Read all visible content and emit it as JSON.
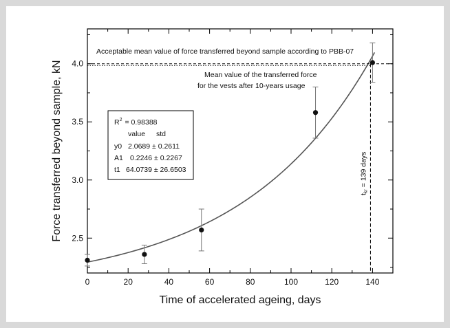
{
  "chart_data": {
    "type": "scatter",
    "xlabel": "Time of accelerated ageing, days",
    "ylabel": "Force transferred beyond sample, kN",
    "xlim": [
      0,
      150
    ],
    "ylim": [
      2.2,
      4.3
    ],
    "x_ticks": [
      "0",
      "20",
      "40",
      "60",
      "80",
      "100",
      "120",
      "140"
    ],
    "y_ticks": [
      "2.5",
      "3.0",
      "3.5",
      "4.0"
    ],
    "points": [
      {
        "x": 0,
        "y": 2.31,
        "err": 0.05
      },
      {
        "x": 28,
        "y": 2.36,
        "err": 0.08
      },
      {
        "x": 56,
        "y": 2.57,
        "err": 0.18
      },
      {
        "x": 112,
        "y": 3.58,
        "err": 0.22
      },
      {
        "x": 140,
        "y": 4.01,
        "err": 0.17
      }
    ],
    "fit": {
      "y0": 2.0689,
      "A1": 0.2246,
      "t1": 64.0739
    },
    "acceptable_line": {
      "y": 4.0,
      "label": "Acceptable mean value of force transferred beyond sample according to PBB-07"
    },
    "mean_line": {
      "y": 3.985,
      "label_line1": "Mean value of the transferred force",
      "label_line2": "for the vests after 10-years usage"
    },
    "vline": {
      "x": 139,
      "label": "= 139 days",
      "label_prefix": "t",
      "label_sub": "kr"
    },
    "stats_box": {
      "r2_label": "R",
      "r2_sup": "2",
      "r2_value": "= 0.98388",
      "header_value": "value",
      "header_std": "std",
      "rows": [
        {
          "name": "y0",
          "value": "2.0689 ± 0.2611"
        },
        {
          "name": "A1",
          "value": "0.2246 ± 0.2267"
        },
        {
          "name": "t1",
          "value": "64.0739 ± 26.6503"
        }
      ]
    }
  }
}
